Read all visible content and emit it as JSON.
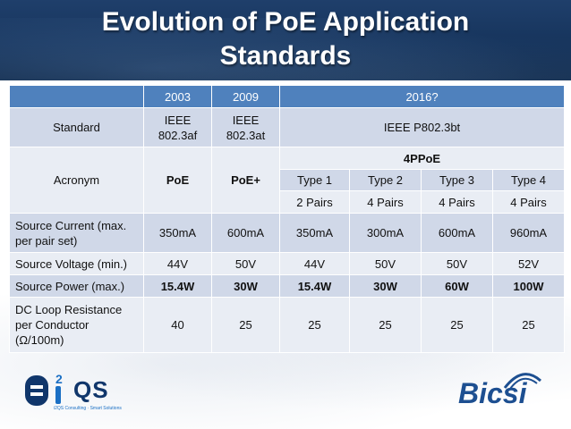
{
  "slide": {
    "title_line1": "Evolution of PoE Application",
    "title_line2": "Standards"
  },
  "table": {
    "years": [
      "2003",
      "2009",
      "2016?"
    ],
    "standard": {
      "label": "Standard",
      "v2003": "IEEE 802.3af",
      "v2009": "IEEE 802.3at",
      "v2016": "IEEE P802.3bt"
    },
    "acronym": {
      "label": "Acronym",
      "v2003": "PoE",
      "v2009": "PoE+",
      "v2016": "4PPoE"
    },
    "types": [
      "Type 1",
      "Type 2",
      "Type 3",
      "Type 4"
    ],
    "pairs": [
      "2 Pairs",
      "4 Pairs",
      "4 Pairs",
      "4 Pairs"
    ],
    "rows": [
      {
        "label": "Source Current (max. per pair set)",
        "values": [
          "350mA",
          "600mA",
          "350mA",
          "300mA",
          "600mA",
          "960mA"
        ]
      },
      {
        "label": "Source Voltage (min.)",
        "values": [
          "44V",
          "50V",
          "44V",
          "50V",
          "50V",
          "52V"
        ]
      },
      {
        "label": "Source Power (max.)",
        "values": [
          "15.4W",
          "30W",
          "15.4W",
          "30W",
          "60W",
          "100W"
        ]
      },
      {
        "label": "DC Loop Resistance per Conductor (Ω/100m)",
        "values": [
          "40",
          "25",
          "25",
          "25",
          "25",
          "25"
        ]
      }
    ]
  },
  "logos": {
    "left_text": "QS",
    "left_superscript": "2",
    "left_tagline": "i2QS Consulting · Smart Solutions",
    "right_text": "Bicsi"
  },
  "colors": {
    "header_blue": "#1f3f6b",
    "table_header": "#4f81bd",
    "row_dark": "#d0d8e8",
    "row_light": "#e9edf4"
  }
}
